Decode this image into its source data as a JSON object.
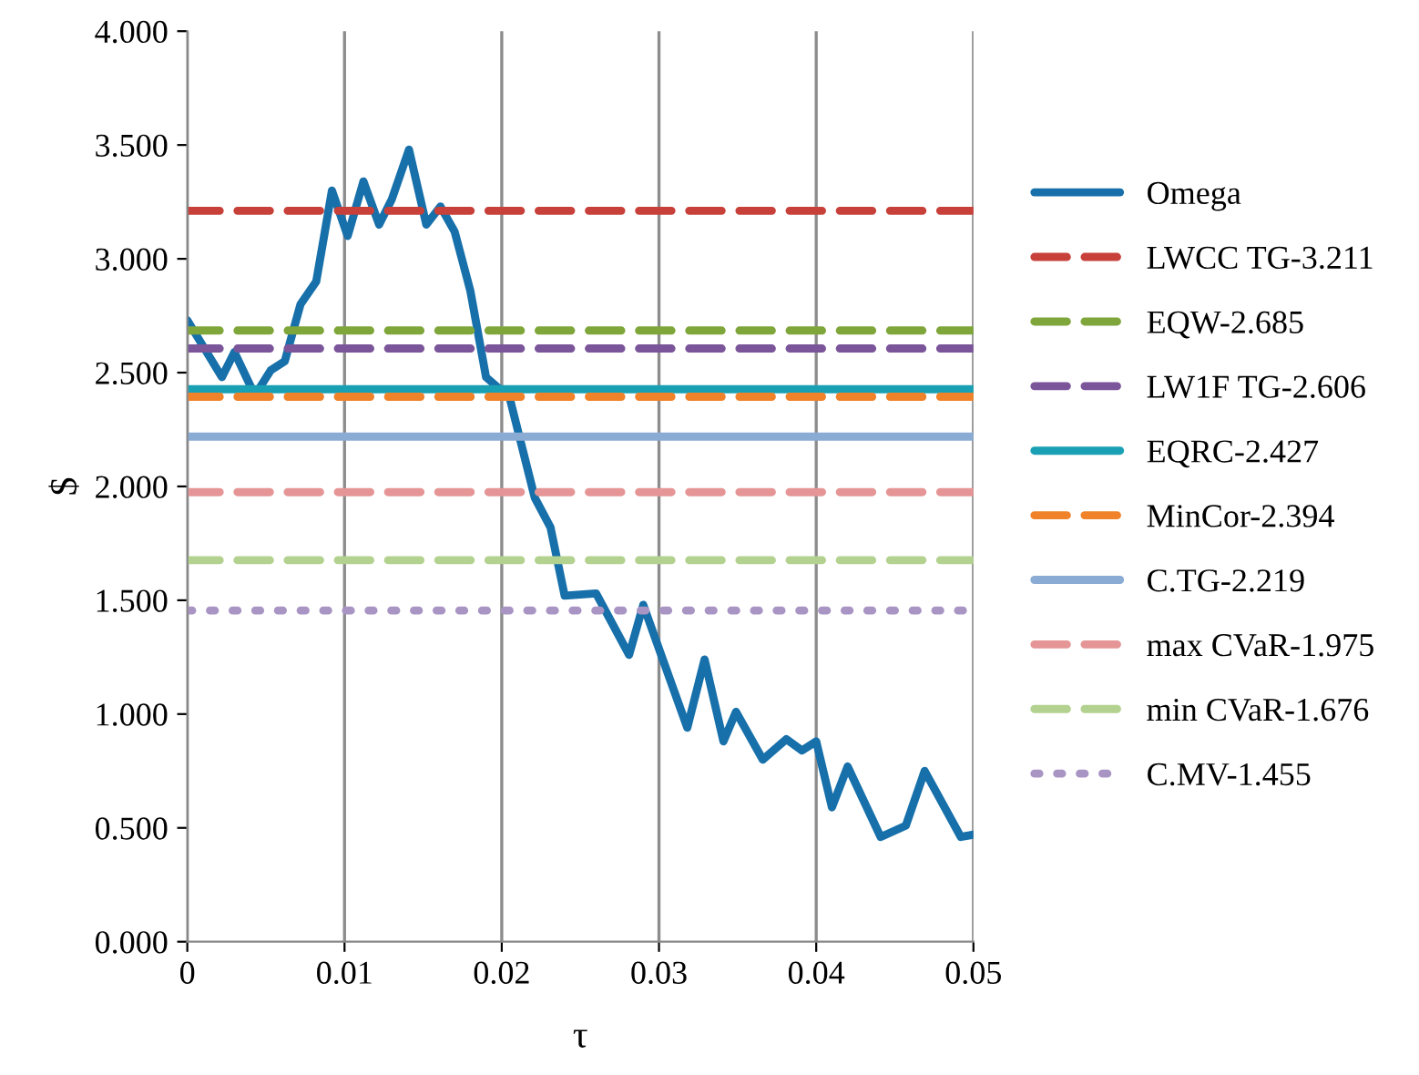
{
  "chart_data": {
    "type": "line",
    "xlabel": "τ",
    "ylabel": "$",
    "xlim": [
      0,
      0.05
    ],
    "xticks": [
      0,
      0.01,
      0.02,
      0.03,
      0.04,
      0.05
    ],
    "ylim": [
      0,
      4
    ],
    "yticks": [
      {
        "value": 0,
        "label": "0.000"
      },
      {
        "value": 0.5,
        "label": "0.500"
      },
      {
        "value": 1,
        "label": "1.000"
      },
      {
        "value": 1.5,
        "label": "1.500"
      },
      {
        "value": 2,
        "label": "2.000"
      },
      {
        "value": 2.5,
        "label": "2.500"
      },
      {
        "value": 3,
        "label": "3.000"
      },
      {
        "value": 3.5,
        "label": "3.500"
      },
      {
        "value": 4,
        "label": "4.000"
      }
    ],
    "grid": "x",
    "legend": "right",
    "marker": "none",
    "series": [
      {
        "name": "Omega",
        "color": "#1770aa",
        "line_style": "solid",
        "x": [
          0,
          0.0022,
          0.003,
          0.0043,
          0.0053,
          0.0062,
          0.0072,
          0.0082,
          0.0092,
          0.0102,
          0.0112,
          0.0122,
          0.013,
          0.0141,
          0.0152,
          0.0161,
          0.017,
          0.018,
          0.019,
          0.0205,
          0.0221,
          0.0231,
          0.024,
          0.026,
          0.0281,
          0.029,
          0.0318,
          0.0329,
          0.0341,
          0.0349,
          0.0366,
          0.0381,
          0.0391,
          0.04,
          0.041,
          0.042,
          0.0441,
          0.0457,
          0.0469,
          0.0492,
          0.05
        ],
        "values": [
          2.73,
          2.48,
          2.59,
          2.4,
          2.51,
          2.55,
          2.8,
          2.9,
          3.3,
          3.1,
          3.34,
          3.15,
          3.26,
          3.48,
          3.15,
          3.23,
          3.12,
          2.86,
          2.48,
          2.39,
          1.95,
          1.82,
          1.52,
          1.53,
          1.26,
          1.48,
          0.94,
          1.24,
          0.88,
          1.01,
          0.8,
          0.89,
          0.84,
          0.88,
          0.59,
          0.77,
          0.46,
          0.51,
          0.75,
          0.46,
          0.47
        ]
      },
      {
        "name": "LWCC TG-3.211",
        "color": "#c8403a",
        "line_style": "dashed",
        "x": [
          0,
          0.05
        ],
        "values": [
          3.211,
          3.211
        ]
      },
      {
        "name": "EQW-2.685",
        "color": "#7fa63a",
        "line_style": "dashed",
        "x": [
          0,
          0.05
        ],
        "values": [
          2.685,
          2.685
        ]
      },
      {
        "name": "LW1F TG-2.606",
        "color": "#7b559a",
        "line_style": "dashed",
        "x": [
          0,
          0.05
        ],
        "values": [
          2.606,
          2.606
        ]
      },
      {
        "name": "EQRC-2.427",
        "color": "#1aa0b4",
        "line_style": "solid",
        "x": [
          0,
          0.05
        ],
        "values": [
          2.427,
          2.427
        ]
      },
      {
        "name": "MinCor-2.394",
        "color": "#f0822a",
        "line_style": "dashed",
        "x": [
          0,
          0.05
        ],
        "values": [
          2.394,
          2.394
        ]
      },
      {
        "name": "C.TG-2.219",
        "color": "#8aabd3",
        "line_style": "solid",
        "x": [
          0,
          0.05
        ],
        "values": [
          2.219,
          2.219
        ]
      },
      {
        "name": "max CVaR-1.975",
        "color": "#e59595",
        "line_style": "dashed",
        "x": [
          0,
          0.05
        ],
        "values": [
          1.975,
          1.975
        ]
      },
      {
        "name": "min CVaR-1.676",
        "color": "#b3d18f",
        "line_style": "dashed",
        "x": [
          0,
          0.05
        ],
        "values": [
          1.676,
          1.676
        ]
      },
      {
        "name": "C.MV-1.455",
        "color": "#a995c4",
        "line_style": "dotted",
        "x": [
          0,
          0.05
        ],
        "values": [
          1.455,
          1.455
        ]
      }
    ]
  }
}
